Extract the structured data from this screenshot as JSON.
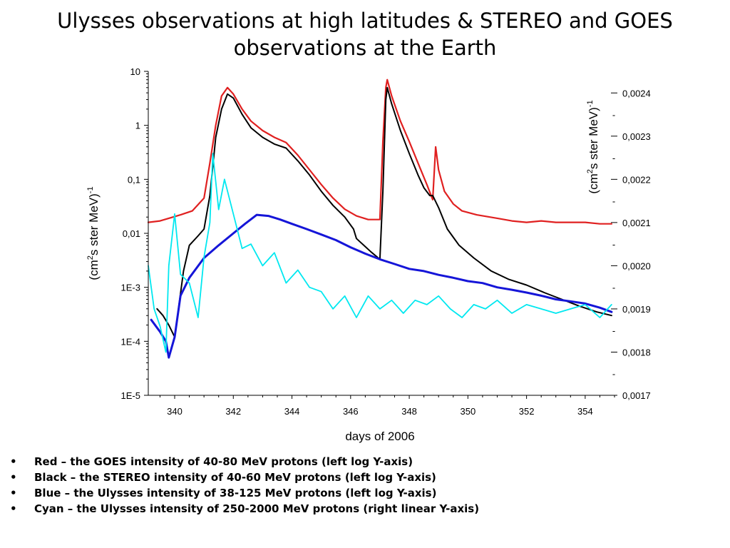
{
  "title_lines": [
    "Ulysses observations at high latitudes & STEREO and GOES",
    "observations at the Earth"
  ],
  "notes": [
    "Red – the GOES intensity of 40-80 MeV protons (left log Y-axis)",
    "Black – the STEREO intensity of 40-60 MeV protons (left log Y-axis)",
    "Blue – the Ulysses intensity of 38-125 MeV protons (left log Y-axis)",
    "Cyan – the Ulysses intensity of 250-2000 MeV protons (right linear Y-axis)"
  ],
  "bullet": "•",
  "chart_data": {
    "type": "line",
    "title": "",
    "xlabel": "days of 2006",
    "ylabel_left": {
      "main": "(cm",
      "sup1": "2",
      "mid": "s ster MeV)",
      "sup2": "-1"
    },
    "ylabel_right": {
      "main": "(cm",
      "sup1": "2",
      "mid": "s ster MeV)",
      "sup2": "-1"
    },
    "xlim": [
      339.1,
      355.0
    ],
    "xticks": [
      340,
      342,
      344,
      346,
      348,
      350,
      352,
      354
    ],
    "y_left_scale": "log",
    "y_left_lim": [
      1e-05,
      10
    ],
    "y_left_ticks": [
      {
        "value": 10,
        "label": "10"
      },
      {
        "value": 1,
        "label": "1"
      },
      {
        "value": 0.1,
        "label": "0,1"
      },
      {
        "value": 0.01,
        "label": "0,01"
      },
      {
        "value": 0.001,
        "label": "1E-3"
      },
      {
        "value": 0.0001,
        "label": "1E-4"
      },
      {
        "value": 1e-05,
        "label": "1E-5"
      }
    ],
    "y_right_scale": "linear",
    "y_right_lim": [
      0.0017,
      0.00245
    ],
    "y_right_ticks": [
      {
        "value": 0.0024,
        "label": "0,0024"
      },
      {
        "value": 0.0023,
        "label": "0,0023"
      },
      {
        "value": 0.0022,
        "label": "0,0022"
      },
      {
        "value": 0.0021,
        "label": "0,0021"
      },
      {
        "value": 0.002,
        "label": "0,0020"
      },
      {
        "value": 0.0019,
        "label": "0,0019"
      },
      {
        "value": 0.0018,
        "label": "0,0018"
      },
      {
        "value": 0.0017,
        "label": "0,0017"
      }
    ],
    "y_right_minor_ticks": [
      0.00235,
      0.00225,
      0.00215,
      0.00205,
      0.00195,
      0.00185,
      0.00175
    ],
    "y_right_minor_label": "-",
    "grid": false,
    "legend": "none",
    "series": [
      {
        "color": "#e02020",
        "axis": "left",
        "width": 2.2,
        "points": [
          [
            339.1,
            0.016
          ],
          [
            339.5,
            0.017
          ],
          [
            339.8,
            0.019
          ],
          [
            340.2,
            0.022
          ],
          [
            340.6,
            0.026
          ],
          [
            341.0,
            0.045
          ],
          [
            341.2,
            0.2
          ],
          [
            341.4,
            1.0
          ],
          [
            341.6,
            3.5
          ],
          [
            341.8,
            5.0
          ],
          [
            342.0,
            3.8
          ],
          [
            342.3,
            2.0
          ],
          [
            342.6,
            1.2
          ],
          [
            343.0,
            0.8
          ],
          [
            343.4,
            0.6
          ],
          [
            343.8,
            0.48
          ],
          [
            344.2,
            0.28
          ],
          [
            344.6,
            0.15
          ],
          [
            345.0,
            0.08
          ],
          [
            345.4,
            0.045
          ],
          [
            345.8,
            0.028
          ],
          [
            346.2,
            0.021
          ],
          [
            346.6,
            0.018
          ],
          [
            347.0,
            0.018
          ],
          [
            347.1,
            0.5
          ],
          [
            347.2,
            5.0
          ],
          [
            347.25,
            7.0
          ],
          [
            347.4,
            3.5
          ],
          [
            347.7,
            1.2
          ],
          [
            348.0,
            0.5
          ],
          [
            348.3,
            0.2
          ],
          [
            348.6,
            0.08
          ],
          [
            348.8,
            0.042
          ],
          [
            348.9,
            0.4
          ],
          [
            349.0,
            0.15
          ],
          [
            349.2,
            0.06
          ],
          [
            349.5,
            0.035
          ],
          [
            349.8,
            0.026
          ],
          [
            350.3,
            0.022
          ],
          [
            351.0,
            0.019
          ],
          [
            351.5,
            0.017
          ],
          [
            352.0,
            0.016
          ],
          [
            352.5,
            0.017
          ],
          [
            353.0,
            0.016
          ],
          [
            353.5,
            0.016
          ],
          [
            354.0,
            0.016
          ],
          [
            354.5,
            0.015
          ],
          [
            354.9,
            0.015
          ]
        ]
      },
      {
        "color": "#000000",
        "axis": "left",
        "width": 2.0,
        "points": [
          [
            339.4,
            0.0004
          ],
          [
            339.6,
            0.0003
          ],
          [
            339.8,
            0.0002
          ],
          [
            340.0,
            0.00012
          ],
          [
            340.1,
            0.0003
          ],
          [
            340.3,
            0.002
          ],
          [
            340.5,
            0.006
          ],
          [
            340.8,
            0.009
          ],
          [
            341.0,
            0.012
          ],
          [
            341.2,
            0.05
          ],
          [
            341.4,
            0.6
          ],
          [
            341.6,
            2.0
          ],
          [
            341.8,
            3.8
          ],
          [
            342.0,
            3.2
          ],
          [
            342.3,
            1.6
          ],
          [
            342.6,
            0.9
          ],
          [
            343.0,
            0.6
          ],
          [
            343.4,
            0.45
          ],
          [
            343.8,
            0.38
          ],
          [
            344.2,
            0.22
          ],
          [
            344.6,
            0.12
          ],
          [
            345.0,
            0.06
          ],
          [
            345.4,
            0.033
          ],
          [
            345.8,
            0.02
          ],
          [
            346.1,
            0.012
          ],
          [
            346.2,
            0.008
          ],
          [
            346.7,
            0.0045
          ],
          [
            347.0,
            0.0033
          ],
          [
            347.1,
            0.06
          ],
          [
            347.2,
            3.0
          ],
          [
            347.25,
            5.0
          ],
          [
            347.4,
            2.5
          ],
          [
            347.7,
            0.8
          ],
          [
            348.0,
            0.3
          ],
          [
            348.3,
            0.12
          ],
          [
            348.5,
            0.07
          ],
          [
            348.7,
            0.05
          ],
          [
            348.8,
            0.05
          ],
          [
            349.0,
            0.03
          ],
          [
            349.3,
            0.012
          ],
          [
            349.7,
            0.006
          ],
          [
            350.2,
            0.0035
          ],
          [
            350.8,
            0.002
          ],
          [
            351.4,
            0.0014
          ],
          [
            352.0,
            0.0011
          ],
          [
            352.6,
            0.0008
          ],
          [
            353.2,
            0.0006
          ],
          [
            353.8,
            0.00045
          ],
          [
            354.4,
            0.00035
          ],
          [
            354.9,
            0.0003
          ]
        ]
      },
      {
        "color": "#1515d8",
        "axis": "left",
        "width": 3.0,
        "points": [
          [
            339.2,
            0.00025
          ],
          [
            339.5,
            0.00015
          ],
          [
            339.7,
            0.0001
          ],
          [
            339.8,
            5e-05
          ],
          [
            340.0,
            0.00012
          ],
          [
            340.2,
            0.0007
          ],
          [
            340.5,
            0.0015
          ],
          [
            341.0,
            0.0035
          ],
          [
            341.5,
            0.006
          ],
          [
            342.0,
            0.01
          ],
          [
            342.4,
            0.015
          ],
          [
            342.8,
            0.022
          ],
          [
            343.2,
            0.021
          ],
          [
            343.6,
            0.018
          ],
          [
            344.0,
            0.015
          ],
          [
            344.5,
            0.012
          ],
          [
            345.0,
            0.0095
          ],
          [
            345.5,
            0.0075
          ],
          [
            346.0,
            0.0055
          ],
          [
            346.5,
            0.0042
          ],
          [
            347.0,
            0.0033
          ],
          [
            347.5,
            0.0027
          ],
          [
            348.0,
            0.0022
          ],
          [
            348.5,
            0.002
          ],
          [
            349.0,
            0.0017
          ],
          [
            349.5,
            0.0015
          ],
          [
            350.0,
            0.0013
          ],
          [
            350.5,
            0.0012
          ],
          [
            351.0,
            0.001
          ],
          [
            351.5,
            0.0009
          ],
          [
            352.0,
            0.0008
          ],
          [
            352.5,
            0.0007
          ],
          [
            353.0,
            0.0006
          ],
          [
            353.5,
            0.00055
          ],
          [
            354.0,
            0.0005
          ],
          [
            354.5,
            0.00042
          ],
          [
            354.9,
            0.00035
          ]
        ]
      },
      {
        "color": "#00e8f0",
        "axis": "right",
        "width": 1.8,
        "points": [
          [
            339.1,
            0.002
          ],
          [
            339.3,
            0.0019
          ],
          [
            339.5,
            0.00186
          ],
          [
            339.7,
            0.0018
          ],
          [
            339.8,
            0.002
          ],
          [
            340.0,
            0.00212
          ],
          [
            340.2,
            0.00198
          ],
          [
            340.5,
            0.00196
          ],
          [
            340.8,
            0.00188
          ],
          [
            341.0,
            0.00202
          ],
          [
            341.2,
            0.0021
          ],
          [
            341.3,
            0.00226
          ],
          [
            341.5,
            0.00213
          ],
          [
            341.7,
            0.0022
          ],
          [
            342.0,
            0.00212
          ],
          [
            342.3,
            0.00204
          ],
          [
            342.6,
            0.00205
          ],
          [
            343.0,
            0.002
          ],
          [
            343.4,
            0.00203
          ],
          [
            343.8,
            0.00196
          ],
          [
            344.2,
            0.00199
          ],
          [
            344.6,
            0.00195
          ],
          [
            345.0,
            0.00194
          ],
          [
            345.4,
            0.0019
          ],
          [
            345.8,
            0.00193
          ],
          [
            346.2,
            0.00188
          ],
          [
            346.6,
            0.00193
          ],
          [
            347.0,
            0.0019
          ],
          [
            347.4,
            0.00192
          ],
          [
            347.8,
            0.00189
          ],
          [
            348.2,
            0.00192
          ],
          [
            348.6,
            0.00191
          ],
          [
            349.0,
            0.00193
          ],
          [
            349.4,
            0.0019
          ],
          [
            349.8,
            0.00188
          ],
          [
            350.2,
            0.00191
          ],
          [
            350.6,
            0.0019
          ],
          [
            351.0,
            0.00192
          ],
          [
            351.5,
            0.00189
          ],
          [
            352.0,
            0.00191
          ],
          [
            352.5,
            0.0019
          ],
          [
            353.0,
            0.00189
          ],
          [
            353.5,
            0.0019
          ],
          [
            354.0,
            0.00191
          ],
          [
            354.5,
            0.00188
          ],
          [
            354.9,
            0.00191
          ]
        ]
      }
    ]
  }
}
